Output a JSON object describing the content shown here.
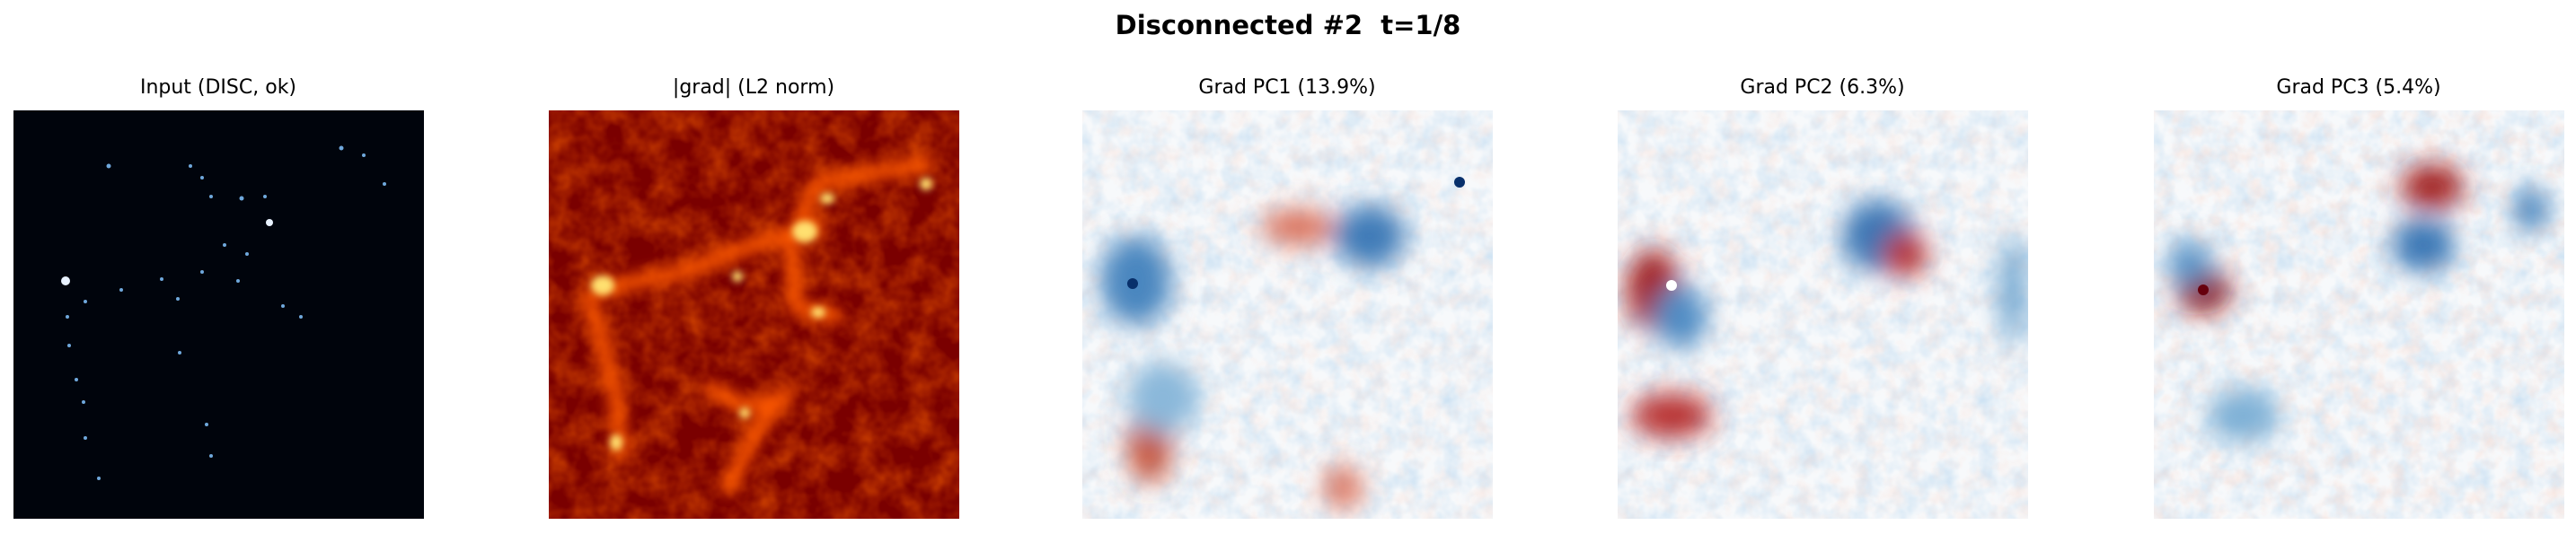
{
  "title": "Disconnected #2  t=1/8",
  "panels": [
    {
      "title": "Input (DISC, ok)"
    },
    {
      "title": "|grad| (L2 norm)"
    },
    {
      "title": "Grad PC1 (13.9%)"
    },
    {
      "title": "Grad PC2 (6.3%)"
    },
    {
      "title": "Grad PC3 (5.4%)"
    }
  ]
}
